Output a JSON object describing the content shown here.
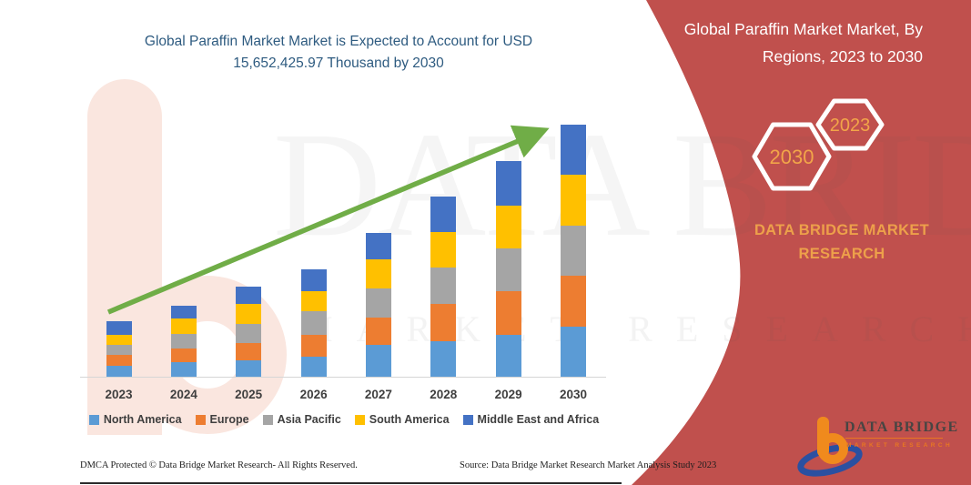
{
  "chart": {
    "title": "Global Paraffin Market Market is Expected to Account for USD 15,652,425.97 Thousand by 2030",
    "title_color": "#2E5B80",
    "footer_left": "DMCA Protected © Data Bridge Market Research-  All Rights Reserved.",
    "footer_right": "Source: Data Bridge Market Research  Market Analysis Study 2023"
  },
  "chart_data": {
    "type": "bar",
    "stacked": true,
    "unit": "USD Thousand",
    "y_axis": "not shown",
    "grid": false,
    "legend_position": "bottom",
    "title": "Global Paraffin Market Market is Expected to Account for USD 15,652,425.97 Thousand by 2030",
    "categories": [
      "2023",
      "2024",
      "2025",
      "2026",
      "2027",
      "2028",
      "2029",
      "2030"
    ],
    "series": [
      {
        "name": "North America",
        "color": "#5B9BD5",
        "values": [
          695000,
          904000,
          1034000,
          1260000,
          1978000,
          2204000,
          2599000,
          3130000
        ]
      },
      {
        "name": "Europe",
        "color": "#ED7D31",
        "values": [
          660000,
          848000,
          1074000,
          1339000,
          1695000,
          2317000,
          2712000,
          3142000
        ]
      },
      {
        "name": "Asia Pacific",
        "color": "#A5A5A5",
        "values": [
          622000,
          921000,
          1187000,
          1486000,
          1791000,
          2260000,
          2656000,
          3108000
        ]
      },
      {
        "name": "South America",
        "color": "#FFC000",
        "values": [
          622000,
          961000,
          1226000,
          1226000,
          1848000,
          2221000,
          2673000,
          3164000
        ]
      },
      {
        "name": "Middle East and Africa",
        "color": "#4472C4",
        "values": [
          865000,
          791000,
          1091000,
          1373000,
          1599000,
          2204000,
          2769000,
          3108426
        ]
      }
    ],
    "totals_note": "2030 stack totals 15,652,425.97 USD Thousand per title; other years estimated from bar heights",
    "annotations": [
      "green upward trend arrow across bars"
    ]
  },
  "sidebar": {
    "bg_color": "#C0504D",
    "title": "Global Paraffin Market Market, By Regions, 2023 to 2030",
    "hexagons": [
      {
        "label": "2030"
      },
      {
        "label": "2023"
      }
    ],
    "brand_line1": "DATA BRIDGE MARKET",
    "brand_line2": "RESEARCH",
    "brand_color": "#EDA04A",
    "logo": {
      "name": "DATA BRIDGE",
      "subtitle": "MARKET RESEARCH"
    }
  },
  "watermark": {
    "line1": "DATA BRIDGE",
    "line2": "MARKET RESEARCH"
  },
  "accents": {
    "arrow_green": "#70AD47",
    "panel_red": "#C0504D"
  }
}
